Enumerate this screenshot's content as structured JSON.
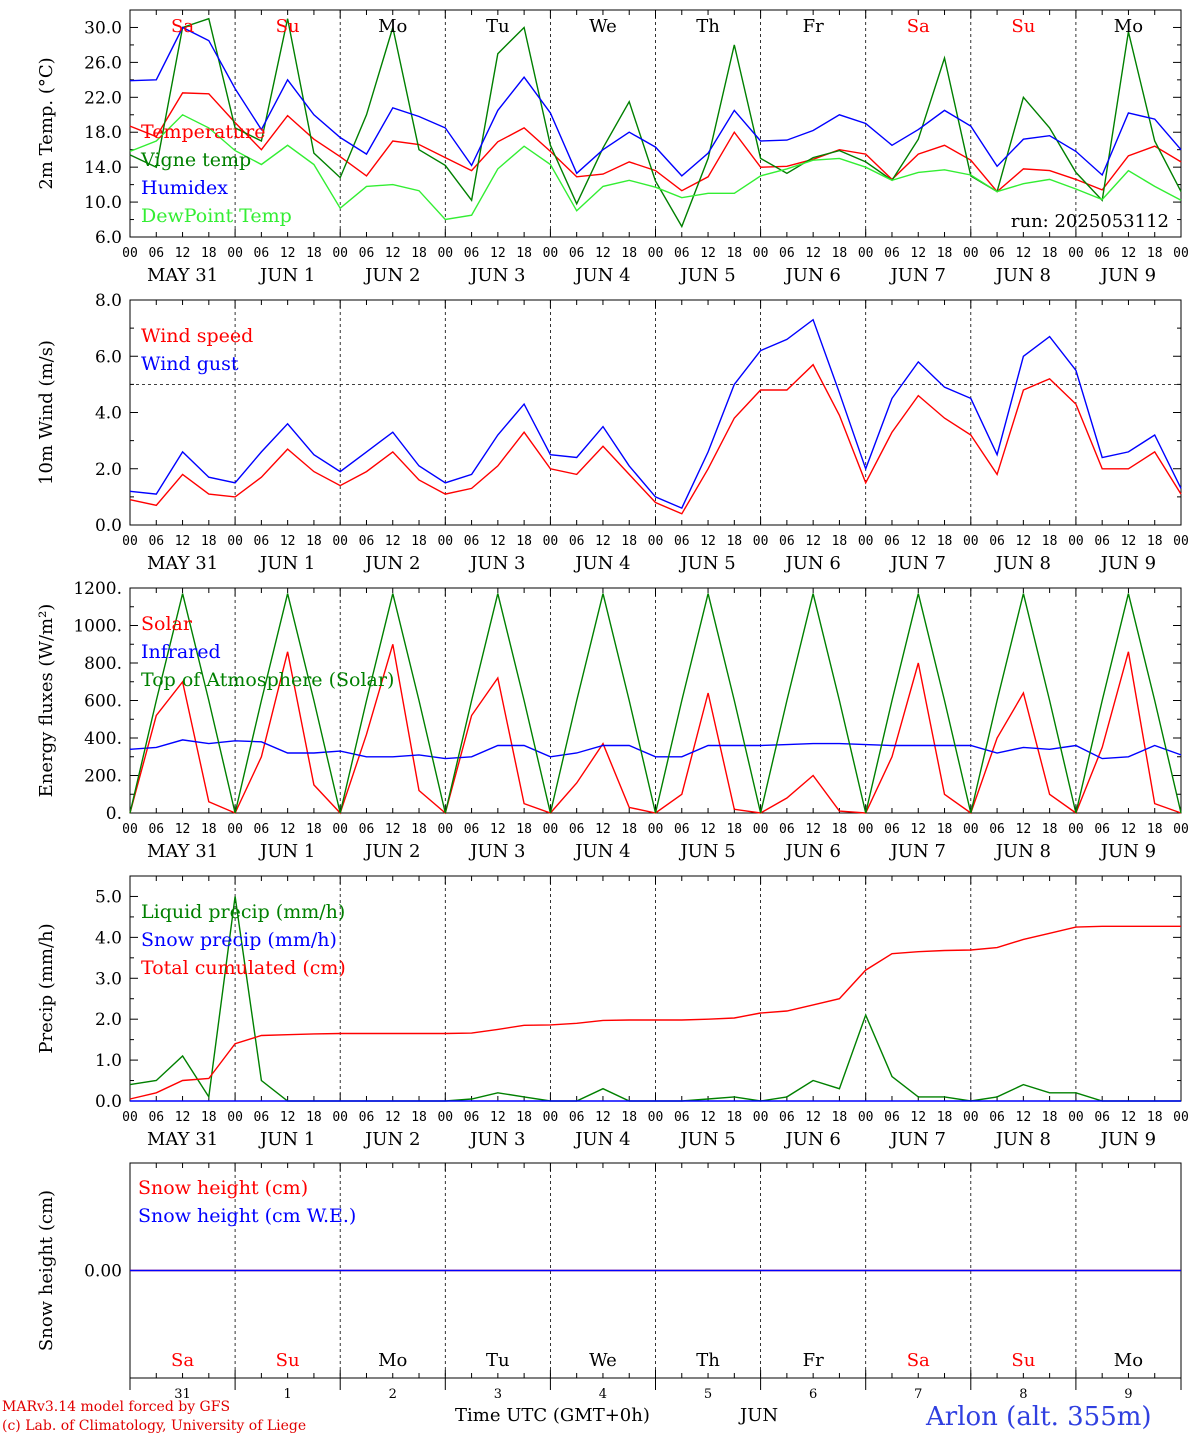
{
  "days": {
    "abbr": [
      "Sa",
      "Su",
      "Mo",
      "Tu",
      "We",
      "Th",
      "Fr",
      "Sa",
      "Su",
      "Mo"
    ],
    "weekend": [
      true,
      true,
      false,
      false,
      false,
      false,
      false,
      true,
      true,
      false
    ],
    "date_labels": [
      "MAY 31",
      "JUN  1",
      "JUN  2",
      "JUN  3",
      "JUN  4",
      "JUN  5",
      "JUN  6",
      "JUN  7",
      "JUN  8",
      "JUN  9"
    ],
    "day_numbers": [
      "31",
      "1",
      "2",
      "3",
      "4",
      "5",
      "6",
      "7",
      "8",
      "9"
    ],
    "hour_ticks": [
      "00",
      "06",
      "12",
      "18"
    ]
  },
  "colors": {
    "red": "#ff0000",
    "green": "#008000",
    "blue": "#0000ff",
    "lightgreen": "#33ee33",
    "weekend_text": "#ff0000",
    "weekday_text": "#000000"
  },
  "footer": {
    "model": "MARv3.14 model forced by GFS",
    "lab": "(c) Lab. of Climatology, University of Liege",
    "xlabel": "Time UTC (GMT+0h)",
    "month": "JUN",
    "station": "Arlon (alt. 355m)"
  },
  "chart_data": [
    {
      "type": "line",
      "ylabel": "2m Temp. (°C)",
      "ylim": [
        6.0,
        32.0
      ],
      "yticks": [
        "6.0",
        "10.0",
        "14.0",
        "18.0",
        "22.0",
        "26.0",
        "30.0"
      ],
      "ytick_values": [
        6,
        10,
        14,
        18,
        22,
        26,
        30
      ],
      "annotation": "run: 2025053112",
      "x": [
        0,
        6,
        12,
        18,
        24,
        30,
        36,
        42,
        48,
        54,
        60,
        66,
        72,
        78,
        84,
        90,
        96,
        102,
        108,
        114,
        120,
        126,
        132,
        138,
        144,
        150,
        156,
        162,
        168,
        174,
        180,
        186,
        192,
        198,
        204,
        210,
        216,
        222,
        228,
        234,
        240
      ],
      "series": [
        {
          "name": "Temperature",
          "color": "red",
          "values": [
            18.7,
            17.5,
            22.5,
            22.4,
            19.1,
            16.0,
            19.9,
            17.2,
            15.2,
            13.0,
            17.0,
            16.6,
            15.1,
            13.6,
            16.9,
            18.5,
            15.8,
            12.9,
            13.2,
            14.6,
            13.6,
            11.3,
            12.9,
            18.0,
            14.0,
            14.1,
            14.9,
            16.0,
            15.5,
            12.6,
            15.5,
            16.5,
            14.8,
            11.2,
            13.8,
            13.6,
            12.6,
            11.4,
            15.3,
            16.4,
            14.6
          ]
        },
        {
          "name": "Vigne temp",
          "color": "green",
          "values": [
            15.4,
            14.0,
            30.0,
            31.0,
            18.5,
            17.0,
            31.0,
            15.6,
            12.8,
            20.0,
            30.0,
            16.0,
            14.2,
            10.2,
            27.0,
            30.0,
            16.5,
            9.8,
            16.2,
            21.5,
            12.4,
            7.2,
            15.0,
            28.0,
            15.0,
            13.3,
            15.1,
            15.9,
            14.6,
            12.5,
            17.2,
            26.5,
            13.0,
            11.2,
            22.0,
            18.5,
            13.4,
            10.2,
            29.5,
            17.0,
            11.2
          ]
        },
        {
          "name": "Humidex",
          "color": "blue",
          "values": [
            23.9,
            24.0,
            30.0,
            28.5,
            23.0,
            18.3,
            24.0,
            20.0,
            17.4,
            15.5,
            20.8,
            19.8,
            18.5,
            14.2,
            20.5,
            24.3,
            20.2,
            13.3,
            16.0,
            18.0,
            16.3,
            13.0,
            15.6,
            20.5,
            17.0,
            17.1,
            18.2,
            20.0,
            19.0,
            16.5,
            18.3,
            20.5,
            18.7,
            14.1,
            17.2,
            17.6,
            15.8,
            13.1,
            20.2,
            19.5,
            16.0
          ]
        },
        {
          "name": "DewPoint Temp",
          "color": "lightgreen",
          "values": [
            15.8,
            17.0,
            20.0,
            18.5,
            15.9,
            14.3,
            16.5,
            14.3,
            9.3,
            11.8,
            12.0,
            11.3,
            8.0,
            8.5,
            13.8,
            16.4,
            14.3,
            9.0,
            11.8,
            12.5,
            11.7,
            10.5,
            11.0,
            11.0,
            13.0,
            13.8,
            14.8,
            15.0,
            14.0,
            12.5,
            13.4,
            13.7,
            13.1,
            11.2,
            12.1,
            12.6,
            11.5,
            10.3,
            13.6,
            11.8,
            10.2
          ]
        }
      ]
    },
    {
      "type": "line",
      "ylabel": "10m Wind (m/s)",
      "ylim": [
        0.0,
        8.0
      ],
      "yticks": [
        "0.0",
        "2.0",
        "4.0",
        "6.0",
        "8.0"
      ],
      "ytick_values": [
        0,
        2,
        4,
        6,
        8
      ],
      "reference_line": 5.0,
      "x": [
        0,
        6,
        12,
        18,
        24,
        30,
        36,
        42,
        48,
        54,
        60,
        66,
        72,
        78,
        84,
        90,
        96,
        102,
        108,
        114,
        120,
        126,
        132,
        138,
        144,
        150,
        156,
        162,
        168,
        174,
        180,
        186,
        192,
        198,
        204,
        210,
        216,
        222,
        228,
        234,
        240
      ],
      "series": [
        {
          "name": "Wind speed",
          "color": "red",
          "values": [
            0.9,
            0.7,
            1.8,
            1.1,
            1.0,
            1.7,
            2.7,
            1.9,
            1.4,
            1.9,
            2.6,
            1.6,
            1.1,
            1.3,
            2.1,
            3.3,
            2.0,
            1.8,
            2.8,
            1.8,
            0.8,
            0.4,
            2.0,
            3.8,
            4.8,
            4.8,
            5.7,
            3.9,
            1.5,
            3.3,
            4.6,
            3.8,
            3.2,
            1.8,
            4.8,
            5.2,
            4.3,
            2.0,
            2.0,
            2.6,
            1.1
          ]
        },
        {
          "name": "Wind gust",
          "color": "blue",
          "values": [
            1.2,
            1.1,
            2.6,
            1.7,
            1.5,
            2.6,
            3.6,
            2.5,
            1.9,
            2.6,
            3.3,
            2.1,
            1.5,
            1.8,
            3.2,
            4.3,
            2.5,
            2.4,
            3.5,
            2.1,
            1.0,
            0.6,
            2.6,
            5.0,
            6.2,
            6.6,
            7.3,
            4.7,
            2.0,
            4.5,
            5.8,
            4.9,
            4.5,
            2.5,
            6.0,
            6.7,
            5.5,
            2.4,
            2.6,
            3.2,
            1.3
          ]
        }
      ]
    },
    {
      "type": "line",
      "ylabel": "Energy fluxes (W/m²)",
      "ylim": [
        0,
        1200
      ],
      "yticks": [
        "0.",
        "200.",
        "400.",
        "600.",
        "800.",
        "1000.",
        "1200."
      ],
      "ytick_values": [
        0,
        200,
        400,
        600,
        800,
        1000,
        1200
      ],
      "x": [
        0,
        6,
        12,
        18,
        24,
        30,
        36,
        42,
        48,
        54,
        60,
        66,
        72,
        78,
        84,
        90,
        96,
        102,
        108,
        114,
        120,
        126,
        132,
        138,
        144,
        150,
        156,
        162,
        168,
        174,
        180,
        186,
        192,
        198,
        204,
        210,
        216,
        222,
        228,
        234,
        240
      ],
      "series": [
        {
          "name": "Solar",
          "color": "red",
          "values": [
            0,
            520,
            700,
            60,
            0,
            300,
            860,
            150,
            0,
            420,
            900,
            120,
            0,
            520,
            720,
            50,
            0,
            160,
            370,
            30,
            0,
            100,
            640,
            20,
            0,
            80,
            200,
            10,
            0,
            300,
            800,
            100,
            0,
            400,
            640,
            100,
            0,
            350,
            860,
            50,
            0
          ]
        },
        {
          "name": "Infrared",
          "color": "blue",
          "values": [
            340,
            350,
            390,
            370,
            385,
            380,
            320,
            320,
            330,
            300,
            300,
            310,
            290,
            300,
            360,
            360,
            300,
            320,
            360,
            360,
            300,
            300,
            360,
            360,
            360,
            365,
            370,
            370,
            365,
            360,
            360,
            360,
            360,
            320,
            350,
            340,
            360,
            290,
            300,
            360,
            310
          ]
        },
        {
          "name": "Top of Atmosphere (Solar)",
          "color": "green",
          "values": [
            0,
            600,
            1170,
            600,
            0,
            600,
            1170,
            600,
            0,
            600,
            1170,
            600,
            0,
            600,
            1170,
            600,
            0,
            600,
            1170,
            600,
            0,
            600,
            1170,
            600,
            0,
            600,
            1170,
            600,
            0,
            600,
            1170,
            600,
            0,
            600,
            1170,
            600,
            0,
            600,
            1170,
            600,
            0
          ]
        }
      ]
    },
    {
      "type": "line",
      "ylabel": "Precip (mm/h)",
      "ylim": [
        0.0,
        5.5
      ],
      "yticks": [
        "0.0",
        "1.0",
        "2.0",
        "3.0",
        "4.0",
        "5.0"
      ],
      "ytick_values": [
        0,
        1,
        2,
        3,
        4,
        5
      ],
      "x": [
        0,
        6,
        12,
        18,
        24,
        30,
        36,
        42,
        48,
        54,
        60,
        66,
        72,
        78,
        84,
        90,
        96,
        102,
        108,
        114,
        120,
        126,
        132,
        138,
        144,
        150,
        156,
        162,
        168,
        174,
        180,
        186,
        192,
        198,
        204,
        210,
        216,
        222,
        228,
        234,
        240
      ],
      "series": [
        {
          "name": "Liquid precip (mm/h)",
          "color": "green",
          "values": [
            0.4,
            0.5,
            1.1,
            0.1,
            5.0,
            0.5,
            0.0,
            0.0,
            0.0,
            0.0,
            0.0,
            0.0,
            0.0,
            0.05,
            0.2,
            0.1,
            0.0,
            0.0,
            0.3,
            0.0,
            0.0,
            0.0,
            0.05,
            0.1,
            0.0,
            0.1,
            0.5,
            0.3,
            2.1,
            0.6,
            0.1,
            0.1,
            0.0,
            0.1,
            0.4,
            0.2,
            0.2,
            0.0,
            0.0,
            0.0,
            0.0
          ]
        },
        {
          "name": "Snow precip (mm/h)",
          "color": "blue",
          "values": [
            0,
            0,
            0,
            0,
            0,
            0,
            0,
            0,
            0,
            0,
            0,
            0,
            0,
            0,
            0,
            0,
            0,
            0,
            0,
            0,
            0,
            0,
            0,
            0,
            0,
            0,
            0,
            0,
            0,
            0,
            0,
            0,
            0,
            0,
            0,
            0,
            0,
            0,
            0,
            0,
            0
          ]
        },
        {
          "name": "Total cumulated (cm)",
          "color": "red",
          "values": [
            0.05,
            0.2,
            0.5,
            0.55,
            1.4,
            1.6,
            1.62,
            1.64,
            1.65,
            1.65,
            1.65,
            1.65,
            1.65,
            1.66,
            1.75,
            1.85,
            1.86,
            1.9,
            1.97,
            1.98,
            1.98,
            1.98,
            2.0,
            2.03,
            2.15,
            2.2,
            2.35,
            2.5,
            3.2,
            3.6,
            3.65,
            3.68,
            3.69,
            3.75,
            3.95,
            4.1,
            4.25,
            4.27,
            4.27,
            4.27,
            4.27
          ]
        }
      ]
    },
    {
      "type": "line",
      "ylabel": "Snow height (cm)",
      "ylim": [
        -1.0,
        1.0
      ],
      "yticks": [
        "0.00"
      ],
      "ytick_values": [
        0
      ],
      "x": [
        0,
        240
      ],
      "series": [
        {
          "name": "Snow height (cm)",
          "color": "red",
          "values": [
            0,
            0
          ]
        },
        {
          "name": "Snow height (cm W.E.)",
          "color": "blue",
          "values": [
            0,
            0
          ]
        }
      ]
    }
  ]
}
